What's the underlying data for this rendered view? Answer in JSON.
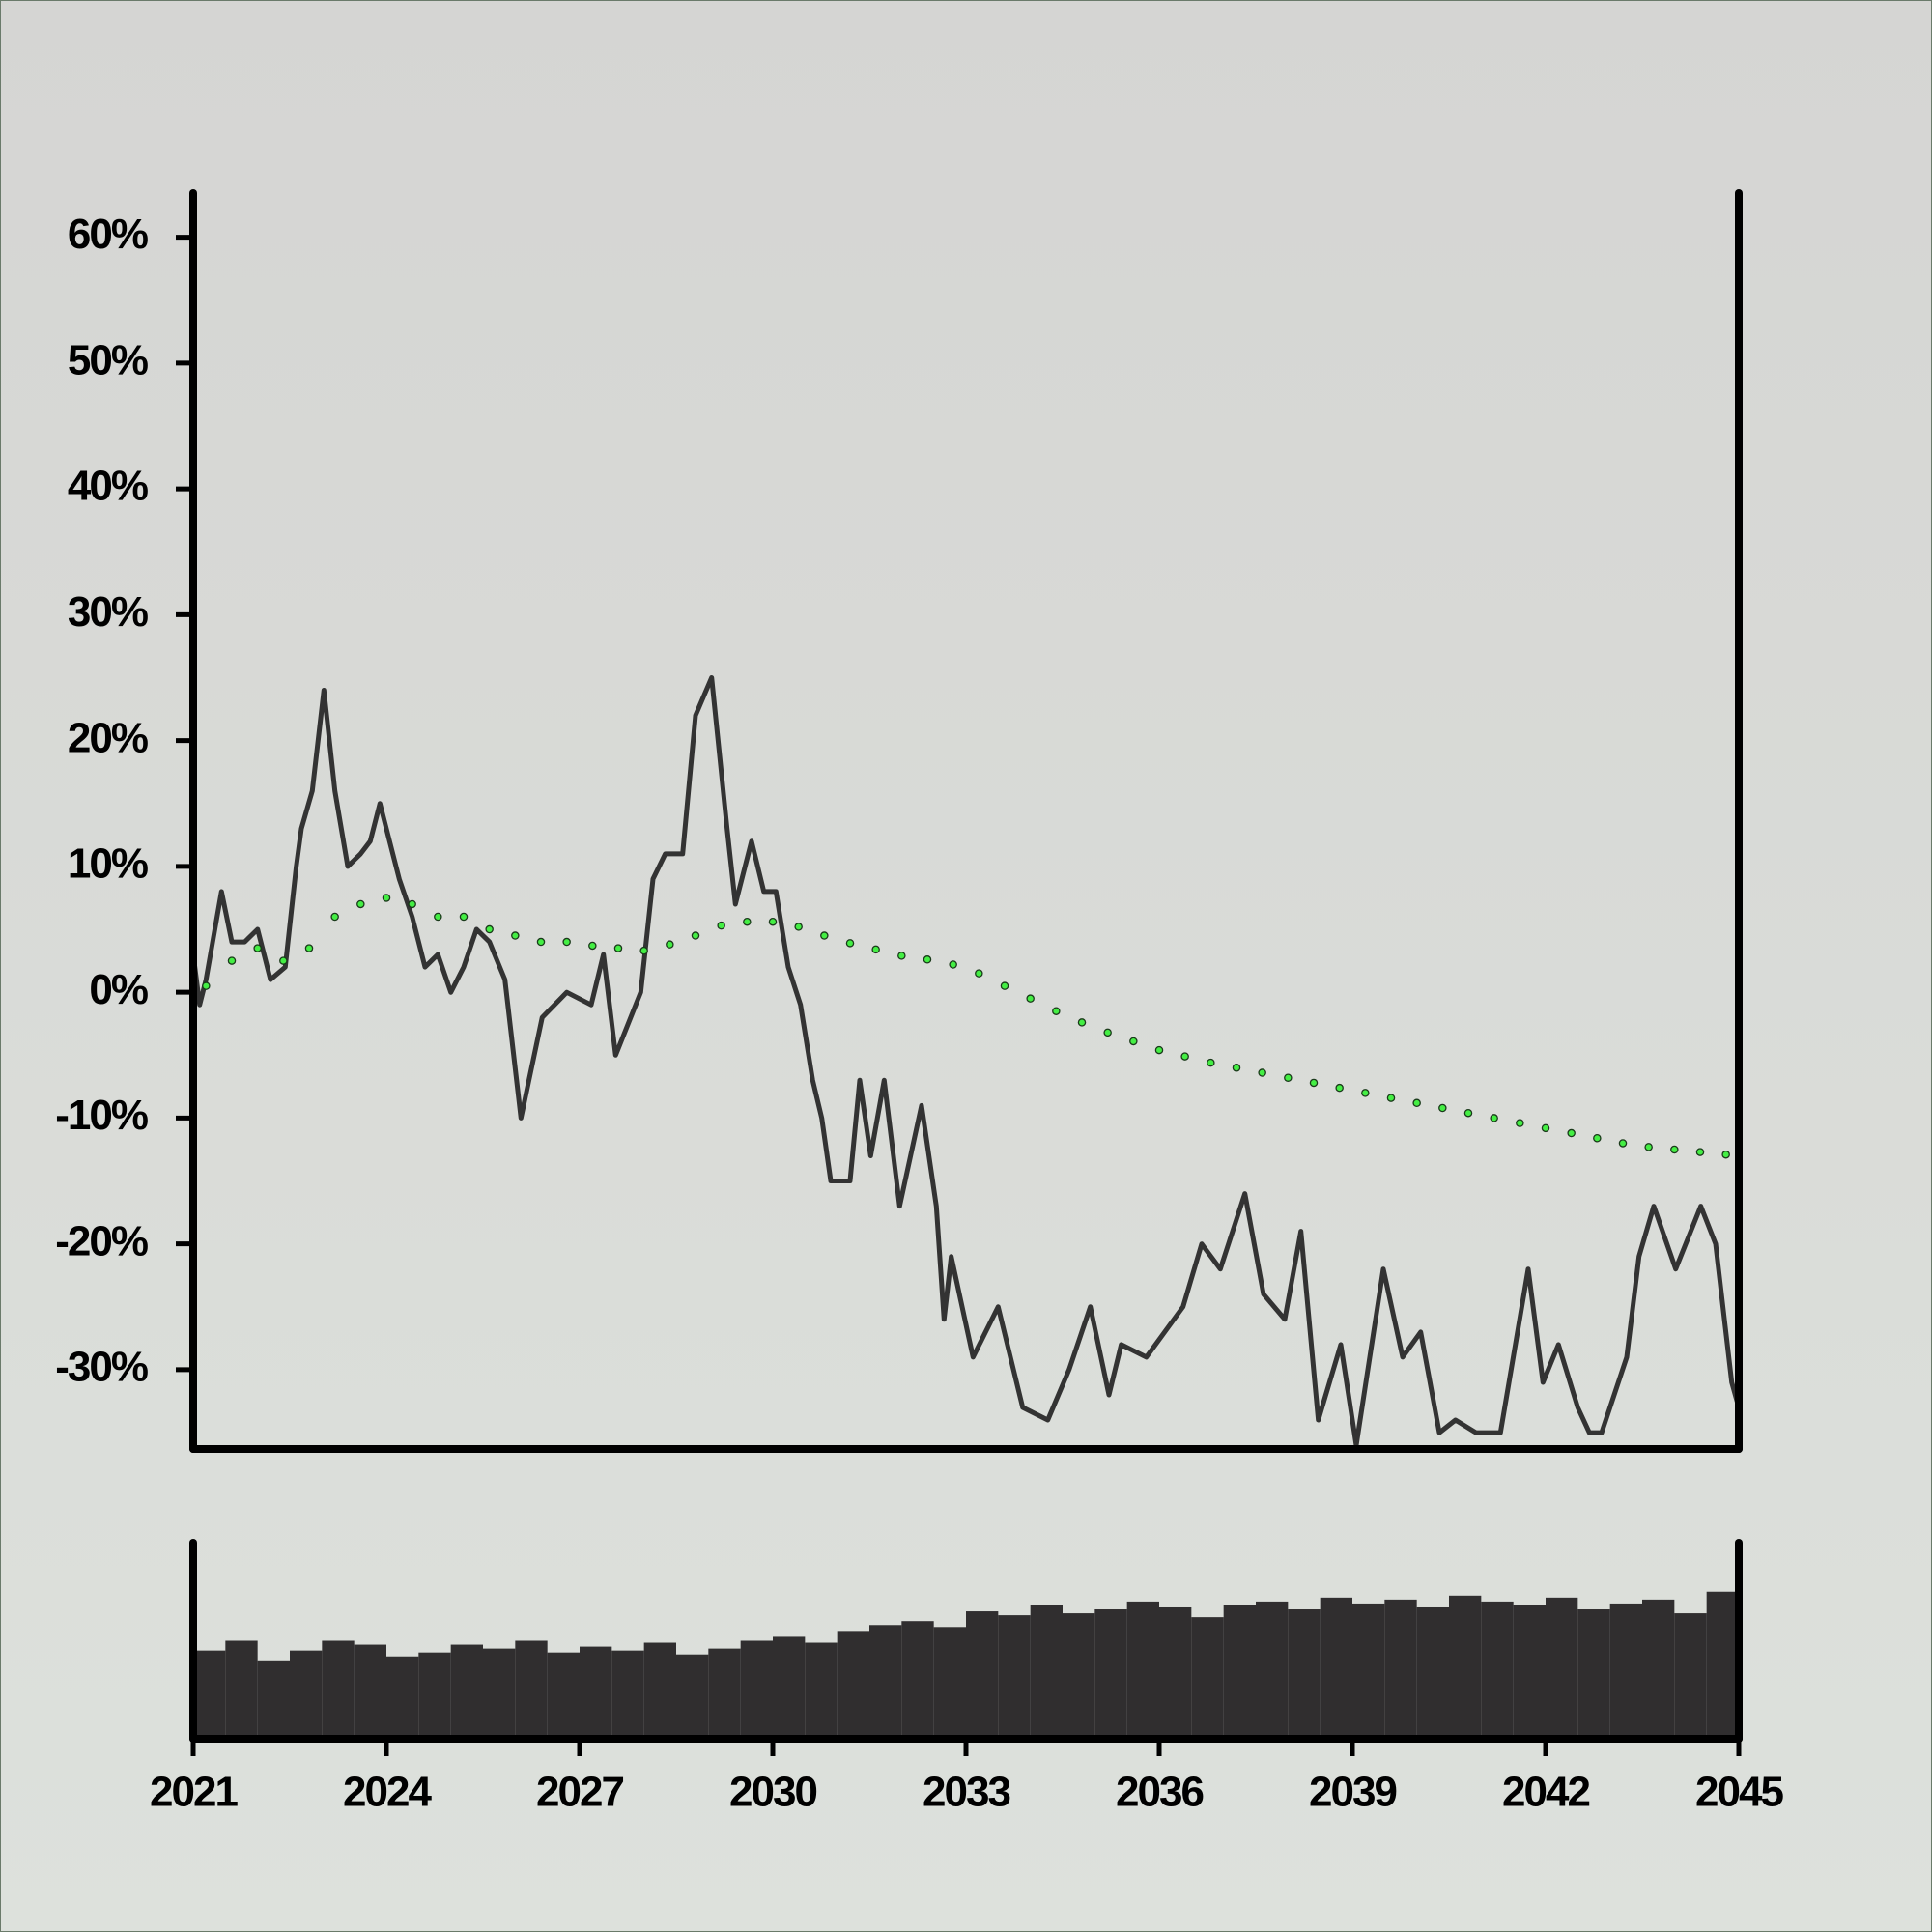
{
  "chart_data": [
    {
      "type": "line",
      "xlim": [
        2021,
        2045
      ],
      "ylim": [
        -36.3,
        63.5
      ],
      "yticks": [
        {
          "value": -30,
          "label": "-30%"
        },
        {
          "value": -20,
          "label": "-20%"
        },
        {
          "value": -10,
          "label": "-10%"
        },
        {
          "value": 0,
          "label": "0%"
        },
        {
          "value": 10,
          "label": "10%"
        },
        {
          "value": 20,
          "label": "20%"
        },
        {
          "value": 30,
          "label": "30%"
        },
        {
          "value": 40,
          "label": "40%"
        },
        {
          "value": 50,
          "label": "50%"
        },
        {
          "value": 60,
          "label": "60%"
        }
      ],
      "series": [
        {
          "color": "#333333",
          "style": "line",
          "x": [
            2021.0,
            2021.1,
            2021.2,
            2021.44,
            2021.6,
            2021.8,
            2022.0,
            2022.2,
            2022.43,
            2022.6,
            2022.68,
            2022.85,
            2023.03,
            2023.2,
            2023.4,
            2023.6,
            2023.75,
            2023.9,
            2024.2,
            2024.4,
            2024.6,
            2024.8,
            2025.0,
            2025.2,
            2025.4,
            2025.6,
            2025.84,
            2026.09,
            2026.42,
            2026.8,
            2027.18,
            2027.37,
            2027.56,
            2027.95,
            2028.14,
            2028.33,
            2028.6,
            2028.8,
            2029.05,
            2029.29,
            2029.42,
            2029.67,
            2029.86,
            2030.05,
            2030.24,
            2030.43,
            2030.62,
            2030.76,
            2030.9,
            2031.2,
            2031.35,
            2031.52,
            2031.73,
            2031.97,
            2032.31,
            2032.54,
            2032.66,
            2032.77,
            2033.11,
            2033.5,
            2033.88,
            2034.27,
            2034.6,
            2034.93,
            2035.22,
            2035.41,
            2035.8,
            2036.37,
            2036.66,
            2036.95,
            2037.33,
            2037.62,
            2037.95,
            2038.2,
            2038.47,
            2038.82,
            2039.06,
            2039.48,
            2039.78,
            2040.06,
            2040.35,
            2040.6,
            2040.92,
            2041.3,
            2041.73,
            2041.96,
            2042.2,
            2042.5,
            2042.68,
            2042.87,
            2043.26,
            2043.45,
            2043.68,
            2044.02,
            2044.41,
            2044.64,
            2044.89,
            2045.0
          ],
          "values": [
            3,
            -1,
            1,
            8,
            4,
            4,
            5,
            1,
            2,
            10,
            13,
            16,
            24,
            16,
            10,
            11,
            12,
            15,
            9,
            6,
            2,
            3,
            0,
            2,
            5,
            4,
            1,
            -10,
            -2,
            0,
            -1,
            3,
            -5,
            0,
            9,
            11,
            11,
            22,
            25,
            13,
            7,
            12,
            8,
            8,
            2,
            -1,
            -7,
            -10,
            -15,
            -15,
            -7,
            -13,
            -7,
            -17,
            -9,
            -17,
            -26,
            -21,
            -29,
            -25,
            -33,
            -34,
            -30,
            -25,
            -32,
            -28,
            -29,
            -25,
            -20,
            -22,
            -16,
            -24,
            -26,
            -19,
            -34,
            -28,
            -36,
            -22,
            -29,
            -27,
            -35,
            -34,
            -35,
            -35,
            -22,
            -31,
            -28,
            -33,
            -35,
            -35,
            -29,
            -21,
            -17,
            -22,
            -17,
            -20,
            -31,
            -33
          ]
        },
        {
          "color": "#44ee44",
          "style": "dots",
          "x": [
            2021.2,
            2021.6,
            2022.0,
            2022.4,
            2022.8,
            2023.2,
            2023.6,
            2024.0,
            2024.4,
            2024.8,
            2025.2,
            2025.6,
            2026.0,
            2026.4,
            2026.8,
            2027.2,
            2027.6,
            2028.0,
            2028.4,
            2028.8,
            2029.2,
            2029.6,
            2030.0,
            2030.4,
            2030.8,
            2031.2,
            2031.6,
            2032.0,
            2032.4,
            2032.8,
            2033.2,
            2033.6,
            2034.0,
            2034.4,
            2034.8,
            2035.2,
            2035.6,
            2036.0,
            2036.4,
            2036.8,
            2037.2,
            2037.6,
            2038.0,
            2038.4,
            2038.8,
            2039.2,
            2039.6,
            2040.0,
            2040.4,
            2040.8,
            2041.2,
            2041.6,
            2042.0,
            2042.4,
            2042.8,
            2043.2,
            2043.6,
            2044.0,
            2044.4,
            2044.8
          ],
          "values": [
            0.5,
            2.5,
            3.5,
            2.5,
            3.5,
            6,
            7,
            7.5,
            7,
            6,
            6,
            5,
            4.5,
            4,
            4,
            3.7,
            3.5,
            3.3,
            3.8,
            4.5,
            5.3,
            5.6,
            5.6,
            5.2,
            4.5,
            3.9,
            3.4,
            2.9,
            2.6,
            2.2,
            1.5,
            0.5,
            -0.5,
            -1.5,
            -2.4,
            -3.2,
            -3.9,
            -4.6,
            -5.1,
            -5.6,
            -6.0,
            -6.4,
            -6.8,
            -7.2,
            -7.6,
            -8.0,
            -8.4,
            -8.8,
            -9.2,
            -9.6,
            -10.0,
            -10.4,
            -10.8,
            -11.2,
            -11.6,
            -12.0,
            -12.3,
            -12.5,
            -12.7,
            -12.9
          ]
        }
      ]
    },
    {
      "type": "bar",
      "xlim": [
        2021,
        2045
      ],
      "ylim": [
        0,
        100
      ],
      "xticks": [
        2021,
        2024,
        2027,
        2030,
        2033,
        2036,
        2039,
        2042,
        2045
      ],
      "color": "#302e2f",
      "x": [
        2021.25,
        2021.75,
        2022.25,
        2022.75,
        2023.25,
        2023.75,
        2024.25,
        2024.75,
        2025.25,
        2025.75,
        2026.25,
        2026.75,
        2027.25,
        2027.75,
        2028.25,
        2028.75,
        2029.25,
        2029.75,
        2030.25,
        2030.75,
        2031.25,
        2031.75,
        2032.25,
        2032.75,
        2033.25,
        2033.75,
        2034.25,
        2034.75,
        2035.25,
        2035.75,
        2036.25,
        2036.75,
        2037.25,
        2037.75,
        2038.25,
        2038.75,
        2039.25,
        2039.75,
        2040.25,
        2040.75,
        2041.25,
        2041.75,
        2042.25,
        2042.75,
        2043.25,
        2043.75,
        2044.25,
        2044.75
      ],
      "values": [
        45,
        50,
        40,
        45,
        50,
        48,
        42,
        44,
        48,
        46,
        50,
        44,
        47,
        45,
        49,
        43,
        46,
        50,
        52,
        49,
        55,
        58,
        60,
        57,
        65,
        63,
        68,
        64,
        66,
        70,
        67,
        62,
        68,
        70,
        66,
        72,
        69,
        71,
        67,
        73,
        70,
        68,
        72,
        66,
        69,
        71,
        64,
        75
      ]
    }
  ]
}
